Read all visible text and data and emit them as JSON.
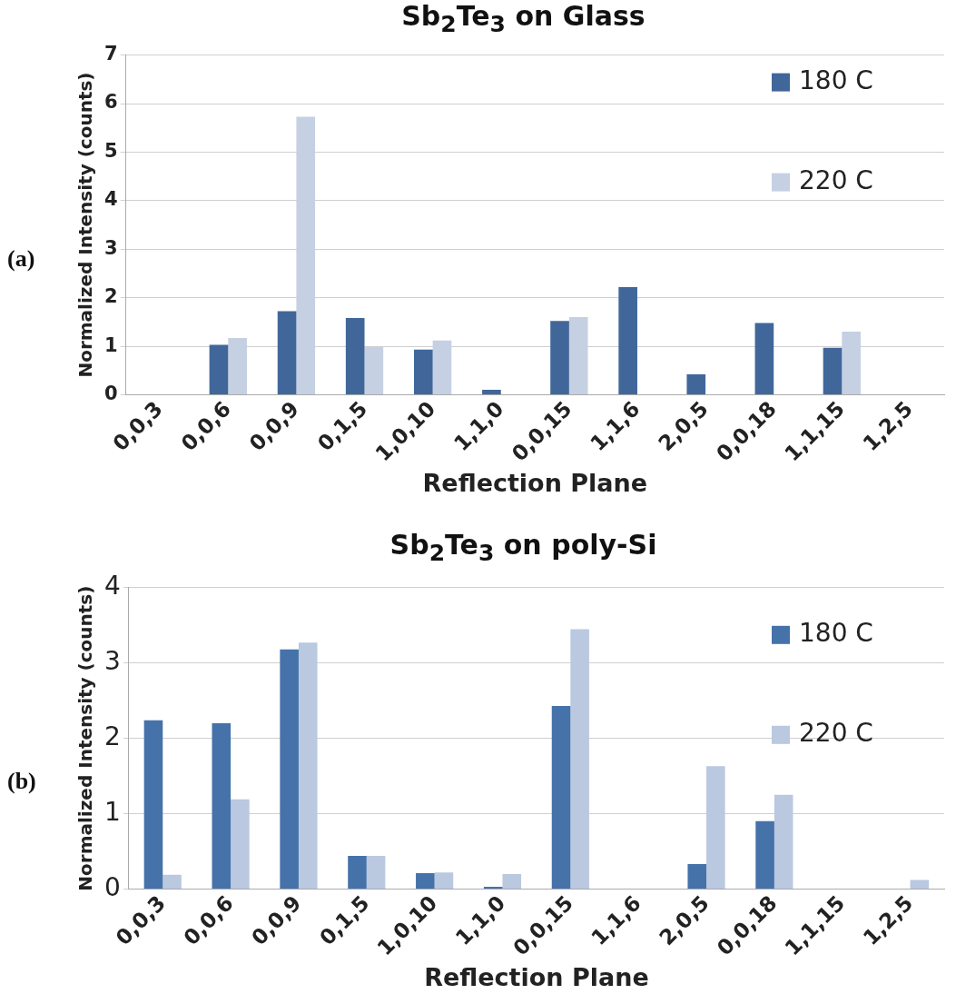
{
  "chart_data": [
    {
      "type": "bar",
      "title": "Sb$_{2}$Te$_{3}$ on Glass",
      "xlabel": "Reflection Plane",
      "ylabel": "Normalized Intensity (counts)",
      "annotations": [
        "(a)"
      ],
      "categories": [
        "0,0,3",
        "0,0,6",
        "0,0,9",
        "0,1,5",
        "1,0,10",
        "1,1,0",
        "0,0,15",
        "1,1,6",
        "2,0,5",
        "0,0,18",
        "1,1,15",
        "1,2,5"
      ],
      "series": [
        {
          "name": "180 C",
          "color": "#41679a",
          "values": [
            0,
            1.03,
            1.72,
            1.58,
            0.93,
            0.1,
            1.52,
            2.22,
            0.42,
            1.48,
            0.97,
            0
          ]
        },
        {
          "name": "220 C",
          "color": "#c6d0e3",
          "values": [
            0,
            1.17,
            5.73,
            0.98,
            1.12,
            0,
            1.6,
            0,
            0,
            0,
            1.3,
            0
          ]
        }
      ],
      "ylim": [
        0,
        7
      ],
      "yticks": [
        0,
        1,
        2,
        3,
        4,
        5,
        6,
        7
      ],
      "grid": "y",
      "legend": "top right"
    },
    {
      "type": "bar",
      "title": "Sb$_{2}$Te$_{3}$ on poly-Si",
      "xlabel": "Reflection Plane",
      "ylabel": "Normalized Intensity (counts)",
      "annotations": [
        "(b)"
      ],
      "categories": [
        "0,0,3",
        "0,0,6",
        "0,0,9",
        "0,1,5",
        "1,0,10",
        "1,1,0",
        "0,0,15",
        "1,1,6",
        "2,0,5",
        "0,0,18",
        "1,1,15",
        "1,2,5"
      ],
      "series": [
        {
          "name": "180 C",
          "color": "#4672aa",
          "values": [
            2.24,
            2.2,
            3.18,
            0.44,
            0.21,
            0.03,
            2.43,
            0,
            0.33,
            0.9,
            0,
            0
          ]
        },
        {
          "name": "220 C",
          "color": "#bac8e0",
          "values": [
            0.19,
            1.19,
            3.27,
            0.44,
            0.22,
            0.2,
            3.45,
            0,
            1.63,
            1.25,
            0,
            0.12
          ]
        }
      ],
      "ylim": [
        0,
        4
      ],
      "yticks": [
        0,
        1,
        2,
        3,
        4
      ],
      "grid": "y",
      "legend": "top right"
    }
  ]
}
